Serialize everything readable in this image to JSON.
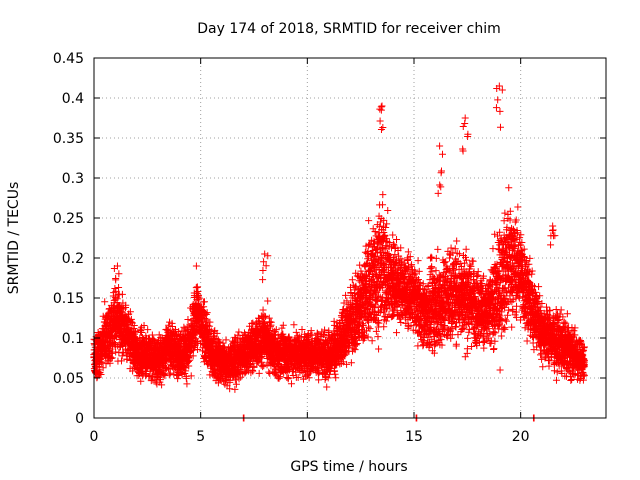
{
  "chart_data": {
    "type": "scatter",
    "title": "Day 174 of 2018, SRMTID for receiver chim",
    "xlabel": "GPS time / hours",
    "ylabel": "SRMTID / TECUs",
    "xlim": [
      0,
      24
    ],
    "ylim": [
      0,
      0.45
    ],
    "xticks": [
      0,
      5,
      10,
      15,
      20
    ],
    "xtick_labels": [
      "0",
      "5",
      "10",
      "15",
      "20"
    ],
    "yticks": [
      0,
      0.05,
      0.1,
      0.15,
      0.2,
      0.25,
      0.3,
      0.35,
      0.4,
      0.45
    ],
    "ytick_labels": [
      "0",
      "0.05",
      "0.1",
      "0.15",
      "0.2",
      "0.25",
      "0.3",
      "0.35",
      "0.4",
      "0.45"
    ],
    "grid": true,
    "marker": "+",
    "color": "#ff0000",
    "series": [
      {
        "name": "SRMTID",
        "x_start": 0,
        "x_end": 23.0,
        "sampling_interval_hours": 0.01,
        "envelope": {
          "hours": [
            0.0,
            0.5,
            1.0,
            1.5,
            2.0,
            2.5,
            3.0,
            3.5,
            4.0,
            4.5,
            4.8,
            5.2,
            5.5,
            6.0,
            6.5,
            7.0,
            7.5,
            8.0,
            8.5,
            9.0,
            9.5,
            10.0,
            10.5,
            11.0,
            11.5,
            12.0,
            12.5,
            13.0,
            13.5,
            14.0,
            14.5,
            15.0,
            15.5,
            16.0,
            16.5,
            17.0,
            17.5,
            18.0,
            18.5,
            19.0,
            19.5,
            20.0,
            20.5,
            21.0,
            21.5,
            22.0,
            22.5,
            23.0
          ],
          "median": [
            0.07,
            0.1,
            0.12,
            0.11,
            0.08,
            0.08,
            0.07,
            0.09,
            0.08,
            0.09,
            0.13,
            0.11,
            0.08,
            0.07,
            0.07,
            0.08,
            0.09,
            0.1,
            0.08,
            0.08,
            0.08,
            0.08,
            0.08,
            0.08,
            0.09,
            0.12,
            0.14,
            0.17,
            0.19,
            0.17,
            0.16,
            0.15,
            0.13,
            0.14,
            0.15,
            0.16,
            0.15,
            0.14,
            0.13,
            0.16,
            0.2,
            0.18,
            0.14,
            0.11,
            0.1,
            0.09,
            0.08,
            0.07
          ],
          "spread": [
            0.02,
            0.03,
            0.035,
            0.03,
            0.025,
            0.025,
            0.025,
            0.025,
            0.025,
            0.03,
            0.035,
            0.035,
            0.03,
            0.025,
            0.025,
            0.025,
            0.025,
            0.03,
            0.025,
            0.025,
            0.025,
            0.025,
            0.025,
            0.025,
            0.03,
            0.035,
            0.045,
            0.06,
            0.07,
            0.05,
            0.035,
            0.035,
            0.035,
            0.05,
            0.05,
            0.05,
            0.05,
            0.04,
            0.04,
            0.06,
            0.06,
            0.05,
            0.04,
            0.03,
            0.03,
            0.03,
            0.025,
            0.02
          ]
        },
        "peaks": [
          {
            "x": 1.1,
            "y": 0.19
          },
          {
            "x": 4.8,
            "y": 0.19
          },
          {
            "x": 8.0,
            "y": 0.205
          },
          {
            "x": 13.5,
            "y": 0.39
          },
          {
            "x": 16.2,
            "y": 0.34
          },
          {
            "x": 17.4,
            "y": 0.375
          },
          {
            "x": 19.0,
            "y": 0.415
          },
          {
            "x": 21.5,
            "y": 0.24
          }
        ],
        "zero_points": [
          {
            "x": 7.0,
            "y": 0
          },
          {
            "x": 15.1,
            "y": 0
          },
          {
            "x": 20.6,
            "y": 0
          }
        ]
      }
    ]
  }
}
